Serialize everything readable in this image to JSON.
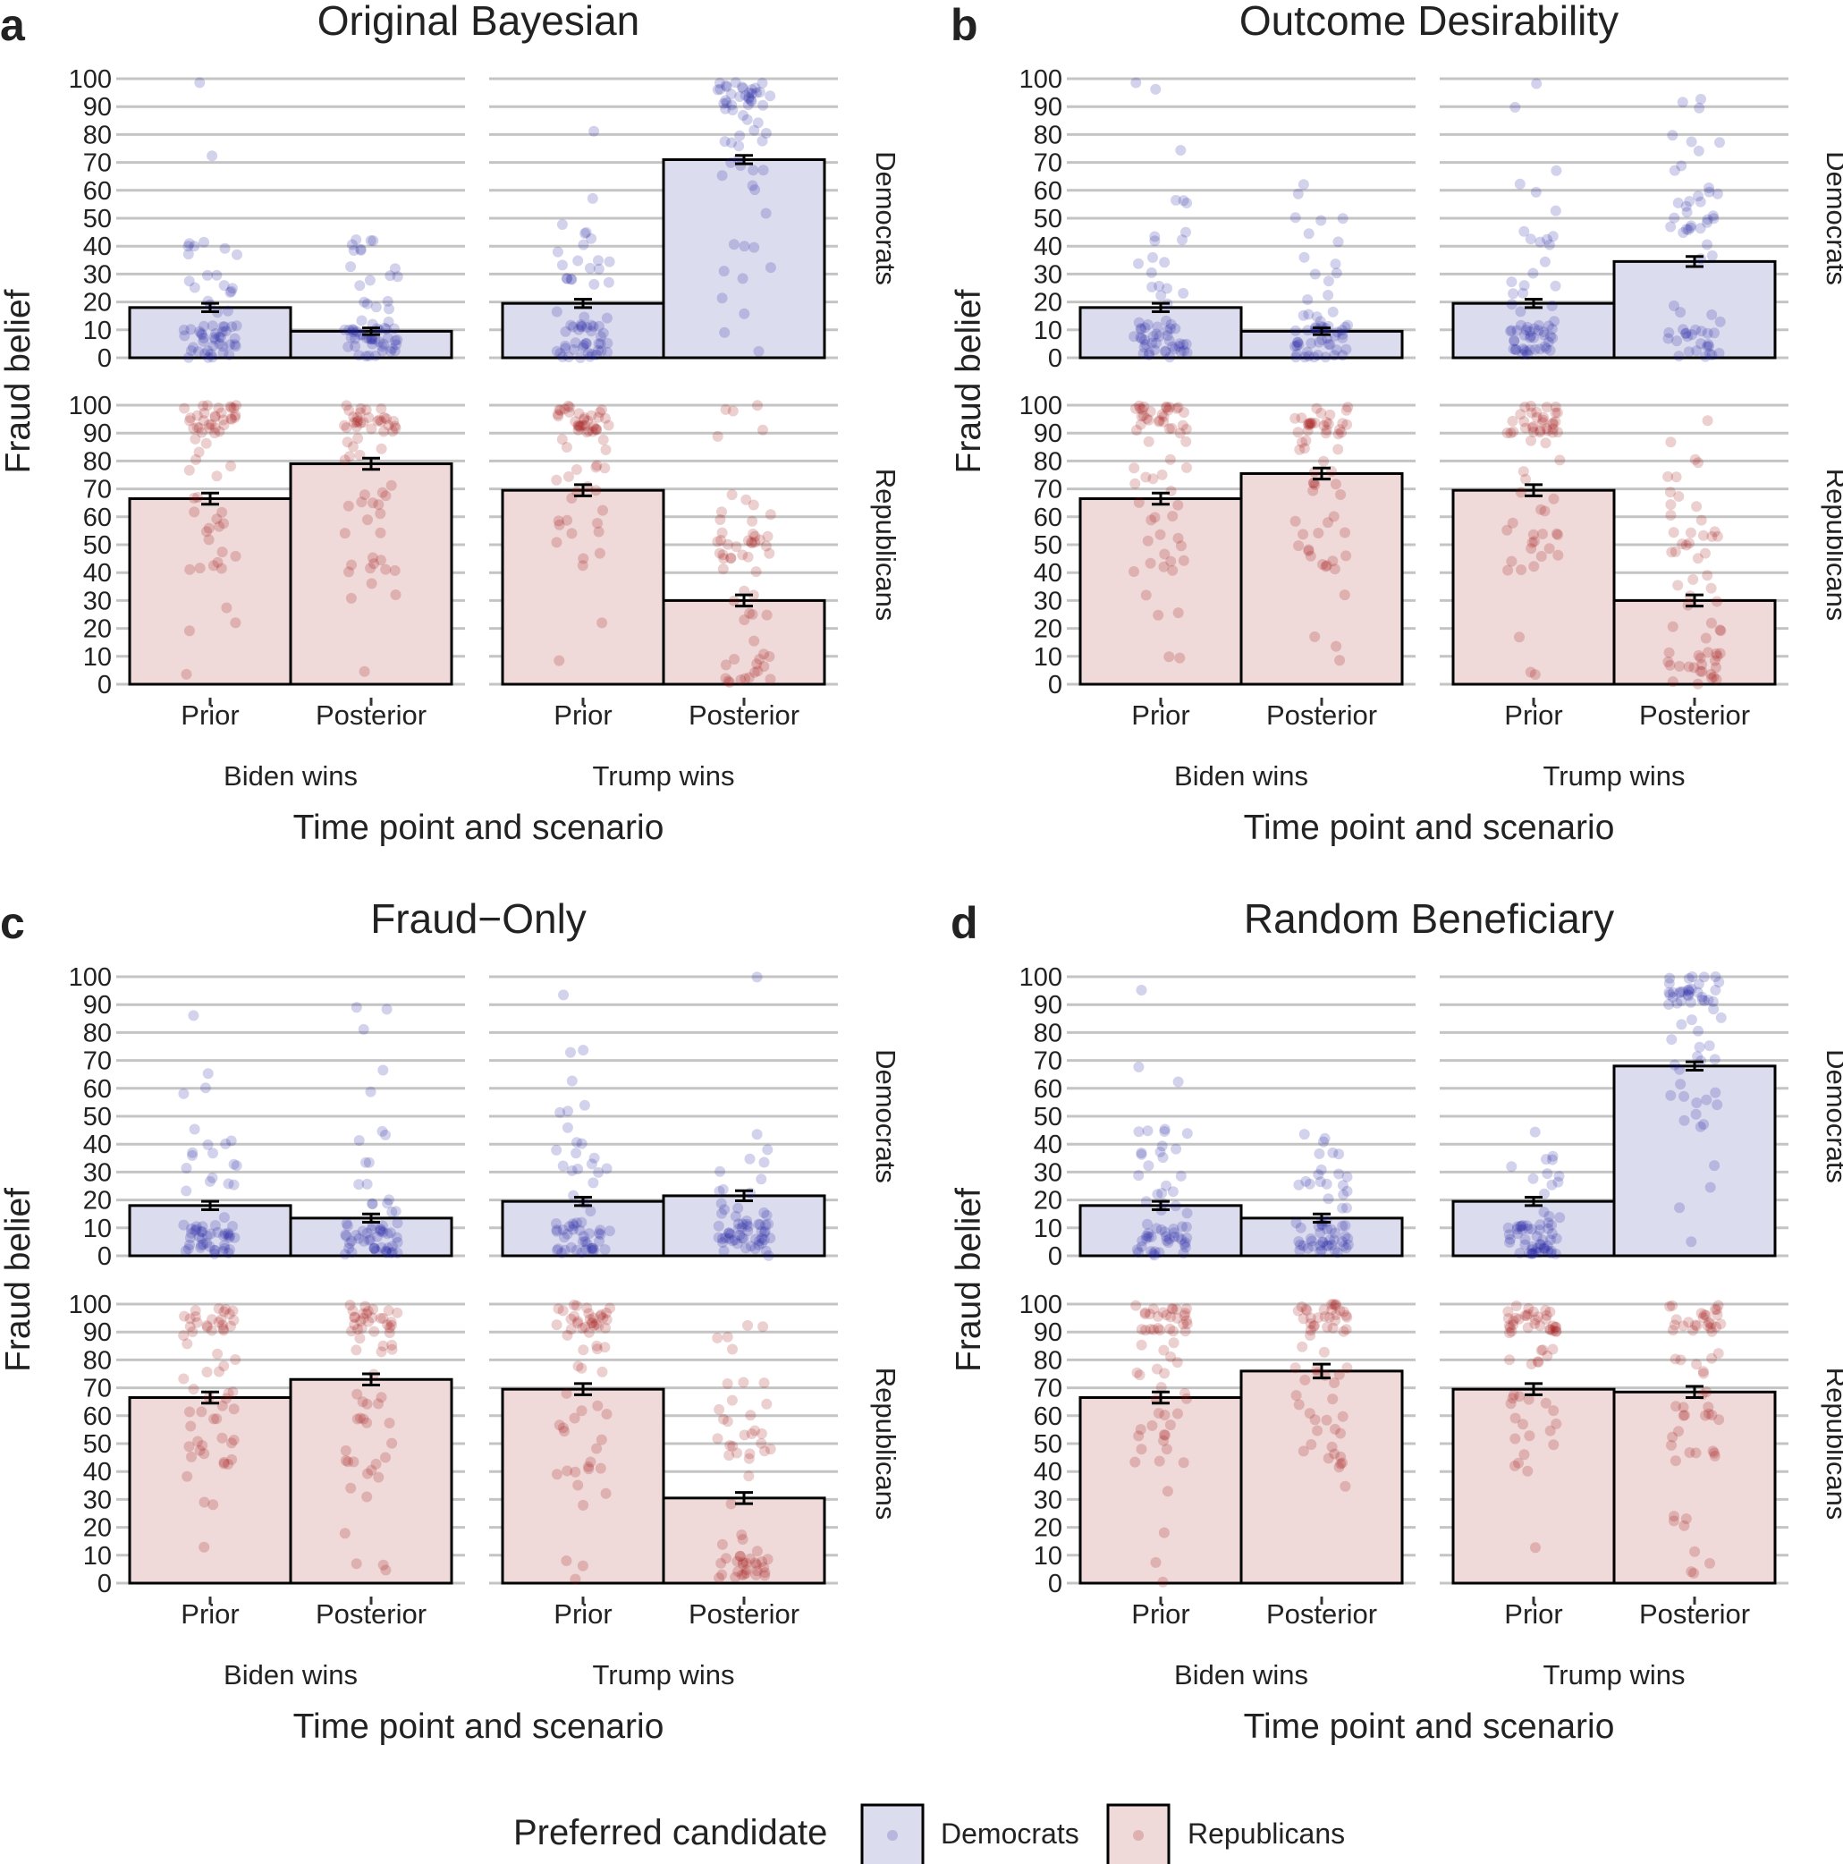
{
  "colors": {
    "dem_fill": "#dcdcef",
    "rep_fill": "#efd9d9",
    "dem_point": "#1f1f9e",
    "rep_point": "#9e1010",
    "grid": "#c4c4c4",
    "bar_stroke": "#000000"
  },
  "legend": {
    "title": "Preferred candidate",
    "items": [
      "Democrats",
      "Republicans"
    ]
  },
  "chart_data": [
    {
      "type": "bar",
      "letter": "a",
      "title": "Original Bayesian",
      "xlabel": "Time point and scenario",
      "ylabel": "Fraud belief",
      "ylim": [
        0,
        100
      ],
      "yticks": [
        0,
        10,
        20,
        30,
        40,
        50,
        60,
        70,
        80,
        90,
        100
      ],
      "scenarios": [
        "Biden wins",
        "Trump wins"
      ],
      "timepoints": [
        "Prior",
        "Posterior"
      ],
      "groups": [
        "Democrats",
        "Republicans"
      ],
      "values": {
        "Democrats": {
          "Biden wins": [
            18,
            9.5
          ],
          "Trump wins": [
            19.5,
            71
          ]
        },
        "Republicans": {
          "Biden wins": [
            66.5,
            79
          ],
          "Trump wins": [
            69.5,
            30
          ]
        }
      },
      "errors": {
        "Democrats": {
          "Biden wins": [
            1.5,
            1.2
          ],
          "Trump wins": [
            1.5,
            1.5
          ]
        },
        "Republicans": {
          "Biden wins": [
            2,
            2
          ],
          "Trump wins": [
            2,
            2
          ]
        }
      }
    },
    {
      "type": "bar",
      "letter": "b",
      "title": "Outcome Desirability",
      "xlabel": "Time point and scenario",
      "ylabel": "Fraud belief",
      "ylim": [
        0,
        100
      ],
      "yticks": [
        0,
        10,
        20,
        30,
        40,
        50,
        60,
        70,
        80,
        90,
        100
      ],
      "scenarios": [
        "Biden wins",
        "Trump wins"
      ],
      "timepoints": [
        "Prior",
        "Posterior"
      ],
      "groups": [
        "Democrats",
        "Republicans"
      ],
      "values": {
        "Democrats": {
          "Biden wins": [
            18,
            9.5
          ],
          "Trump wins": [
            19.5,
            34.5
          ]
        },
        "Republicans": {
          "Biden wins": [
            66.5,
            75.5
          ],
          "Trump wins": [
            69.5,
            30
          ]
        }
      },
      "errors": {
        "Democrats": {
          "Biden wins": [
            1.5,
            1.2
          ],
          "Trump wins": [
            1.5,
            1.8
          ]
        },
        "Republicans": {
          "Biden wins": [
            2,
            2
          ],
          "Trump wins": [
            2,
            2
          ]
        }
      }
    },
    {
      "type": "bar",
      "letter": "c",
      "title": "Fraud−Only",
      "xlabel": "Time point and scenario",
      "ylabel": "Fraud belief",
      "ylim": [
        0,
        100
      ],
      "yticks": [
        0,
        10,
        20,
        30,
        40,
        50,
        60,
        70,
        80,
        90,
        100
      ],
      "scenarios": [
        "Biden wins",
        "Trump wins"
      ],
      "timepoints": [
        "Prior",
        "Posterior"
      ],
      "groups": [
        "Democrats",
        "Republicans"
      ],
      "values": {
        "Democrats": {
          "Biden wins": [
            18,
            13.5
          ],
          "Trump wins": [
            19.5,
            21.5
          ]
        },
        "Republicans": {
          "Biden wins": [
            66.5,
            73
          ],
          "Trump wins": [
            69.5,
            30.5
          ]
        }
      },
      "errors": {
        "Democrats": {
          "Biden wins": [
            1.5,
            1.5
          ],
          "Trump wins": [
            1.5,
            1.8
          ]
        },
        "Republicans": {
          "Biden wins": [
            2,
            2
          ],
          "Trump wins": [
            2,
            2
          ]
        }
      }
    },
    {
      "type": "bar",
      "letter": "d",
      "title": "Random Beneficiary",
      "xlabel": "Time point and scenario",
      "ylabel": "Fraud belief",
      "ylim": [
        0,
        100
      ],
      "yticks": [
        0,
        10,
        20,
        30,
        40,
        50,
        60,
        70,
        80,
        90,
        100
      ],
      "scenarios": [
        "Biden wins",
        "Trump wins"
      ],
      "timepoints": [
        "Prior",
        "Posterior"
      ],
      "groups": [
        "Democrats",
        "Republicans"
      ],
      "values": {
        "Democrats": {
          "Biden wins": [
            18,
            13.5
          ],
          "Trump wins": [
            19.5,
            68
          ]
        },
        "Republicans": {
          "Biden wins": [
            66.5,
            76
          ],
          "Trump wins": [
            69.5,
            68.5
          ]
        }
      },
      "errors": {
        "Democrats": {
          "Biden wins": [
            1.5,
            1.5
          ],
          "Trump wins": [
            1.5,
            1.5
          ]
        },
        "Republicans": {
          "Biden wins": [
            2,
            2.5
          ],
          "Trump wins": [
            2,
            2
          ]
        }
      }
    }
  ]
}
